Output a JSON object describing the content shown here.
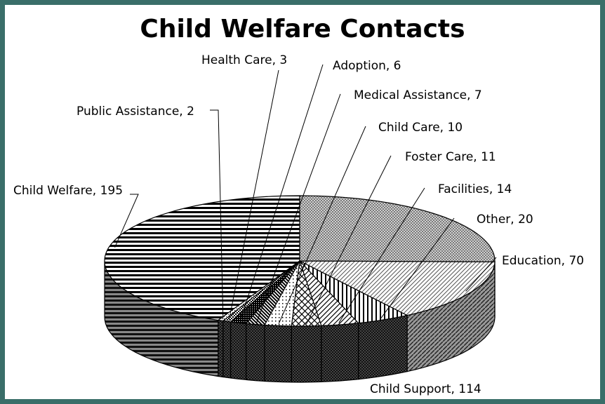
{
  "colors": {
    "border": "#3a6e69",
    "background": "#ffffff",
    "ink": "#000000"
  },
  "chart_data": {
    "type": "pie",
    "title": "Child Welfare Contacts",
    "slices": [
      {
        "label": "Child Welfare",
        "value": 195,
        "text": "Child Welfare, 195",
        "pattern": "horizontal-stripes"
      },
      {
        "label": "Public Assistance",
        "value": 2,
        "text": "Public Assistance, 2",
        "pattern": "fine-dots"
      },
      {
        "label": "Health Care",
        "value": 3,
        "text": "Health Care, 3",
        "pattern": "checker"
      },
      {
        "label": "Adoption",
        "value": 6,
        "text": "Adoption, 6",
        "pattern": "dense-checker"
      },
      {
        "label": "Medical Assistance",
        "value": 7,
        "text": "Medical Assistance, 7",
        "pattern": "diagonal-down"
      },
      {
        "label": "Child Care",
        "value": 10,
        "text": "Child Care, 10",
        "pattern": "sparse-dots"
      },
      {
        "label": "Foster Care",
        "value": 11,
        "text": "Foster Care, 11",
        "pattern": "grid"
      },
      {
        "label": "Facilities",
        "value": 14,
        "text": "Facilities, 14",
        "pattern": "diagonal-up"
      },
      {
        "label": "Other",
        "value": 20,
        "text": "Other, 20",
        "pattern": "vertical-stripes"
      },
      {
        "label": "Education",
        "value": 70,
        "text": "Education, 70",
        "pattern": "diagonal-light"
      },
      {
        "label": "Child Support",
        "value": 114,
        "text": "Child Support, 114",
        "pattern": "checker-gray"
      }
    ]
  }
}
